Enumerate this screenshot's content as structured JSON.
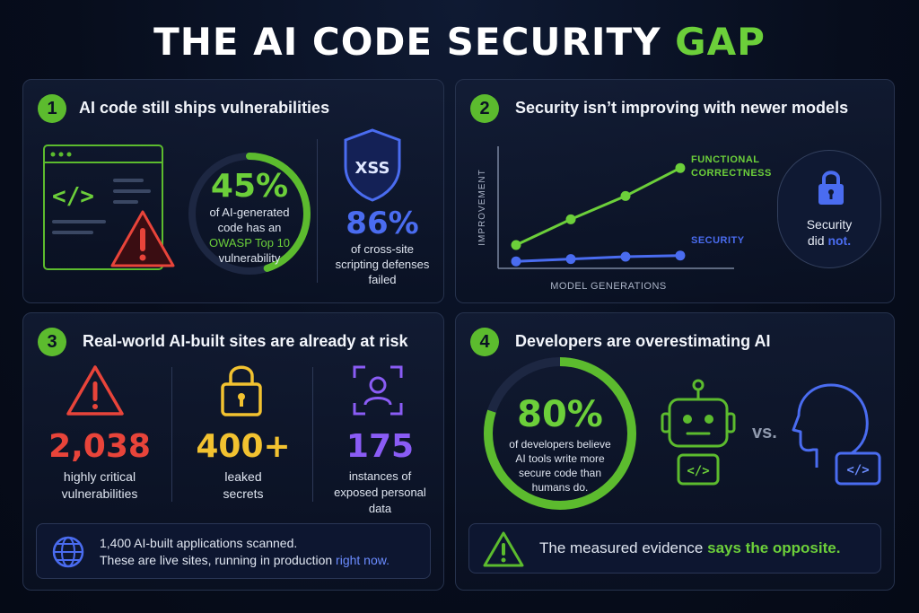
{
  "title": {
    "main": "THE AI CODE SECURITY",
    "accent": "GAP"
  },
  "colors": {
    "green": "#6ccf3a",
    "blue": "#4a6cf0",
    "red": "#e8443a",
    "yellow": "#f2c230",
    "purple": "#8a5cf5",
    "panel_border": "#26324d"
  },
  "panel1": {
    "number": "1",
    "title": "AI code still ships vulnerabilities",
    "stat1": {
      "value": "45%",
      "percent": 45,
      "line1": "of AI-generated",
      "line2": "code has an",
      "highlight": "OWASP Top 10",
      "line4": "vulnerability"
    },
    "stat2": {
      "shield_label": "XSS",
      "value": "86%",
      "line1": "of cross-site",
      "line2": "scripting defenses",
      "line3": "failed"
    },
    "icons": [
      "code-window-icon",
      "warning-icon",
      "shield-icon"
    ]
  },
  "panel2": {
    "number": "2",
    "title": "Security isn’t improving with newer models",
    "ylabel": "IMPROVEMENT",
    "xlabel": "MODEL GENERATIONS",
    "series1_label_l1": "FUNCTIONAL",
    "series1_label_l2": "CORRECTNESS",
    "series2_label": "SECURITY",
    "callout_l1": "Security",
    "callout_l2a": "did",
    "callout_l2b": "not."
  },
  "chart_data": {
    "type": "line",
    "x": [
      1,
      2,
      3,
      4
    ],
    "xlabel": "MODEL GENERATIONS",
    "ylabel": "IMPROVEMENT",
    "series": [
      {
        "name": "FUNCTIONAL CORRECTNESS",
        "values": [
          2,
          4.2,
          6.2,
          8.6
        ],
        "color": "#6ccf3a"
      },
      {
        "name": "SECURITY",
        "values": [
          0.6,
          0.8,
          1.0,
          1.1
        ],
        "color": "#4a6cf0"
      }
    ],
    "ylim": [
      0,
      10
    ],
    "grid": false
  },
  "panel3": {
    "number": "3",
    "title": "Real-world AI-built sites are already at risk",
    "stats": [
      {
        "value": "2,038",
        "line1": "highly critical",
        "line2": "vulnerabilities",
        "line3": "",
        "color": "#e8443a",
        "icon": "warning-icon"
      },
      {
        "value": "400+",
        "line1": "leaked",
        "line2": "secrets",
        "line3": "",
        "color": "#f2c230",
        "icon": "lock-icon"
      },
      {
        "value": "175",
        "line1": "instances of",
        "line2": "exposed personal",
        "line3": "data",
        "color": "#8a5cf5",
        "icon": "user-scan-icon"
      }
    ],
    "footer_l1": "1,400 AI-built applications scanned.",
    "footer_l2": "These are live sites, running in production",
    "footer_highlight": "right now."
  },
  "panel4": {
    "number": "4",
    "title": "Developers are overestimating AI",
    "value": "80%",
    "percent": 80,
    "line1": "of developers believe",
    "line2": "AI tools write more",
    "line3": "secure code than",
    "line4": "humans do.",
    "vs": "vs.",
    "code_tag": "</>",
    "footer_text": "The measured evidence",
    "footer_highlight": "says the opposite."
  }
}
